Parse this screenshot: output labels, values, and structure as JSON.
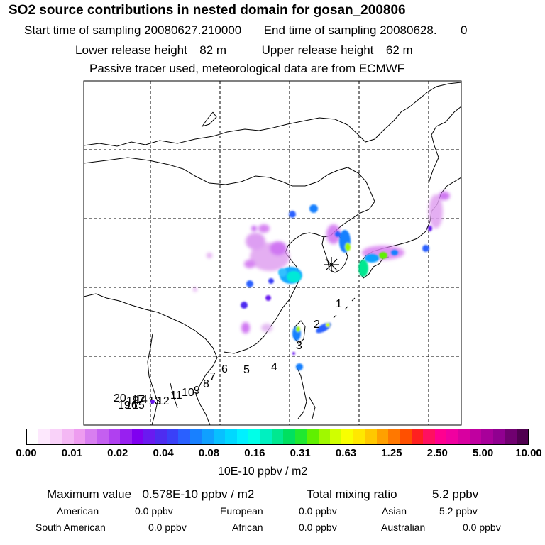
{
  "header": {
    "title": "SO2 source contributions in nested domain for gosan_200806",
    "start_label": "Start time of sampling",
    "start_value": "20080627.210000",
    "end_label": "End time of sampling",
    "end_value": "20080628.",
    "end_suffix": "0",
    "lower_label": "Lower release height",
    "lower_value": "82 m",
    "upper_label": "Upper release height",
    "upper_value": "62 m",
    "tracer_note": "Passive tracer used, meteorological data are from ECMWF"
  },
  "map": {
    "receptor": "gosan",
    "receptor_marker": "star-icon",
    "trajectory_labels": [
      "1",
      "2",
      "3",
      "4",
      "5",
      "6",
      "7",
      "8",
      "9",
      "10",
      "11",
      "12",
      "13",
      "14",
      "15",
      "16",
      "17",
      "18",
      "19",
      "20"
    ],
    "colors": {
      "coast": "#000000",
      "grid": "#000000"
    }
  },
  "colorbar": {
    "ticks": [
      "0.00",
      "0.01",
      "0.02",
      "0.04",
      "0.08",
      "0.16",
      "0.31",
      "0.63",
      "1.25",
      "2.50",
      "5.00",
      "10.00"
    ],
    "units": "10E-10 ppbv / m2",
    "colors": [
      "#ffffff",
      "#fde8fd",
      "#f9d2f9",
      "#f4b8f4",
      "#ee9cf0",
      "#d87ef0",
      "#c45ff0",
      "#b040f0",
      "#9820f0",
      "#8000f0",
      "#6a1af0",
      "#4e2cf0",
      "#3a40f8",
      "#2a60ff",
      "#1880ff",
      "#10a0ff",
      "#08c0ff",
      "#00d8ff",
      "#00f0ff",
      "#00ffe8",
      "#00f0c0",
      "#00e890",
      "#00e060",
      "#20e830",
      "#60f000",
      "#a0f800",
      "#d0ff00",
      "#f8ff00",
      "#ffe800",
      "#ffc800",
      "#ffa000",
      "#ff7800",
      "#ff5000",
      "#ff2020",
      "#ff1060",
      "#ff0090",
      "#f000a0",
      "#d800a0",
      "#c000a0",
      "#a8009a",
      "#900090",
      "#700070",
      "#500050"
    ]
  },
  "summary": {
    "max_label": "Maximum value",
    "max_value": "0.578E-10 ppbv / m2",
    "total_label": "Total mixing ratio",
    "total_value": "5.2 ppbv",
    "regions": [
      {
        "name": "American",
        "value": "0.0 ppbv"
      },
      {
        "name": "European",
        "value": "0.0 ppbv"
      },
      {
        "name": "Asian",
        "value": "5.2 ppbv"
      },
      {
        "name": "South American",
        "value": "0.0 ppbv"
      },
      {
        "name": "African",
        "value": "0.0 ppbv"
      },
      {
        "name": "Australian",
        "value": "0.0 ppbv"
      }
    ]
  }
}
